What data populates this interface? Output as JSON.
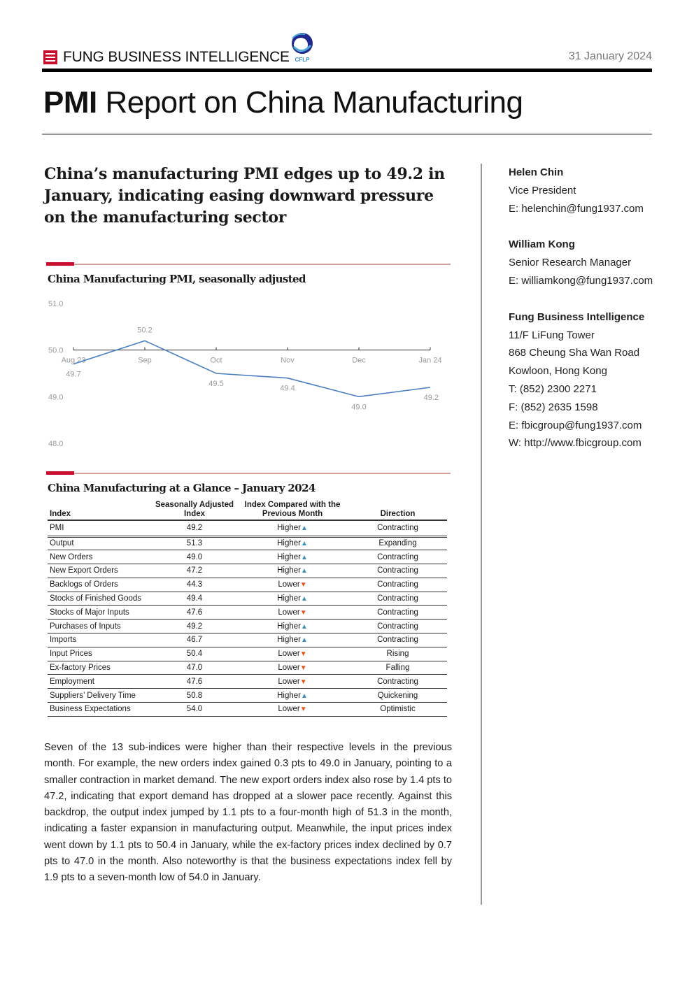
{
  "header": {
    "brand": "FUNG BUSINESS INTELLIGENCE",
    "partner_logo_text": "CFLP",
    "date": "31 January 2024",
    "title_bold": "PMI",
    "title_rest": " Report on China Manufacturing"
  },
  "headline": "China’s manufacturing PMI edges up to 49.2 in January, indicating easing downward pressure on the manufacturing sector",
  "chart_data": {
    "type": "line",
    "title": "China Manufacturing PMI, seasonally adjusted",
    "categories": [
      "Aug 23",
      "Sep",
      "Oct",
      "Nov",
      "Dec",
      "Jan 24"
    ],
    "series": [
      {
        "values": [
          49.7,
          50.2,
          49.5,
          49.4,
          49.0,
          49.2
        ]
      }
    ],
    "data_labels": [
      "49.7",
      "50.2",
      "49.5",
      "49.4",
      "49.0",
      "49.2"
    ],
    "ylim": [
      48.0,
      51.0
    ],
    "yticks": [
      "51.0",
      "50.0",
      "49.0",
      "48.0"
    ],
    "x_axis_crosses_at": 50.0,
    "grid": false,
    "line_color": "#4a7fc1"
  },
  "table": {
    "title": "China Manufacturing at a Glance – January 2024",
    "headers": [
      "Index",
      "Seasonally Adjusted Index",
      "Index Compared with the Previous Month",
      "Direction"
    ],
    "rows": [
      {
        "index": "PMI",
        "value": "49.2",
        "compare": "Higher",
        "arrow": "up",
        "direction": "Contracting"
      },
      {
        "index": "Output",
        "value": "51.3",
        "compare": "Higher",
        "arrow": "up",
        "direction": "Expanding"
      },
      {
        "index": "New Orders",
        "value": "49.0",
        "compare": "Higher",
        "arrow": "up",
        "direction": "Contracting"
      },
      {
        "index": "New Export Orders",
        "value": "47.2",
        "compare": "Higher",
        "arrow": "up",
        "direction": "Contracting"
      },
      {
        "index": "Backlogs of Orders",
        "value": "44.3",
        "compare": "Lower",
        "arrow": "down",
        "direction": "Contracting"
      },
      {
        "index": "Stocks of Finished Goods",
        "value": "49.4",
        "compare": "Higher",
        "arrow": "up",
        "direction": "Contracting"
      },
      {
        "index": "Stocks of Major Inputs",
        "value": "47.6",
        "compare": "Lower",
        "arrow": "down",
        "direction": "Contracting"
      },
      {
        "index": "Purchases of Inputs",
        "value": "49.2",
        "compare": "Higher",
        "arrow": "up",
        "direction": "Contracting"
      },
      {
        "index": "Imports",
        "value": "46.7",
        "compare": "Higher",
        "arrow": "up",
        "direction": "Contracting"
      },
      {
        "index": "Input Prices",
        "value": "50.4",
        "compare": "Lower",
        "arrow": "down",
        "direction": "Rising"
      },
      {
        "index": "Ex-factory Prices",
        "value": "47.0",
        "compare": "Lower",
        "arrow": "down",
        "direction": "Falling"
      },
      {
        "index": "Employment",
        "value": "47.6",
        "compare": "Lower",
        "arrow": "down",
        "direction": "Contracting"
      },
      {
        "index": "Suppliers’ Delivery Time",
        "value": "50.8",
        "compare": "Higher",
        "arrow": "up",
        "direction": "Quickening"
      },
      {
        "index": "Business Expectations",
        "value": "54.0",
        "compare": "Lower",
        "arrow": "down",
        "direction": "Optimistic"
      }
    ]
  },
  "body": "Seven of the 13 sub-indices were higher than their respective levels in the previous month. For example, the new orders index gained 0.3 pts to 49.0 in January, pointing to a smaller contraction in market demand. The new export orders index also rose by 1.4 pts to 47.2, indicating that export demand has dropped at a slower pace recently. Against this backdrop, the output index jumped by 1.1 pts to a four-month high of 51.3 in the month, indicating a faster expansion in manufacturing output. Meanwhile, the input prices index went down by 1.1 pts to 50.4 in January, while the ex-factory prices index declined by 0.7 pts to 47.0 in the month. Also noteworthy is that the business expectations index fell by 1.9 pts to a seven-month low of 54.0 in January.",
  "sidebar": {
    "contact1": {
      "name": "Helen Chin",
      "title": "Vice President",
      "email": "E: helenchin@fung1937.com"
    },
    "contact2": {
      "name": "William Kong",
      "title": "Senior Research Manager",
      "email": "E: williamkong@fung1937.com"
    },
    "company": {
      "name": "Fung Business Intelligence",
      "lines": [
        "11/F LiFung Tower",
        "868 Cheung Sha Wan Road",
        "Kowloon, Hong Kong",
        "T: (852) 2300 2271",
        "F: (852) 2635 1598",
        "E: fbicgroup@fung1937.com",
        "W: http://www.fbicgroup.com"
      ]
    }
  }
}
